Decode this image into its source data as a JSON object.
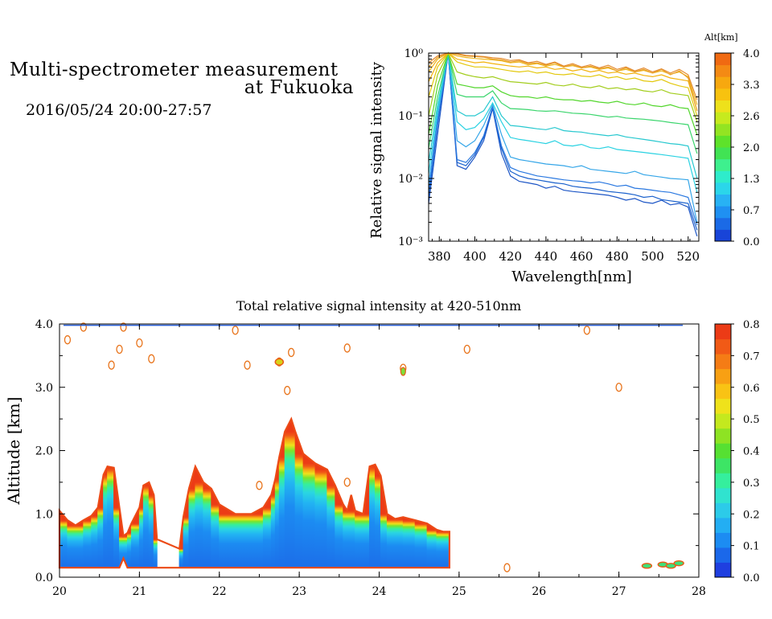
{
  "header": {
    "title_line1": "Multi-spectrometer measurement",
    "title_line2": "at Fukuoka",
    "date_range": "2016/05/24 20:00-27:57"
  },
  "chart_data": [
    {
      "type": "line",
      "xlabel": "Wavelength[nm]",
      "ylabel": "Relative signal intensity",
      "xlim": [
        374,
        526
      ],
      "ylim": [
        0.001,
        1
      ],
      "yscale": "log",
      "x_ticks": [
        380,
        400,
        420,
        440,
        460,
        480,
        500,
        520
      ],
      "y_ticks": [
        "10⁰",
        "10⁻¹",
        "10⁻²",
        "10⁻³"
      ],
      "x": [
        374,
        379,
        385,
        390,
        395,
        400,
        405,
        410,
        415,
        420,
        425,
        430,
        435,
        440,
        445,
        450,
        455,
        460,
        465,
        470,
        475,
        480,
        485,
        490,
        495,
        500,
        505,
        510,
        515,
        520,
        525
      ],
      "colorbar": {
        "label": "Alt[km]",
        "ticks": [
          "4.0",
          "3.3",
          "2.6",
          "2.0",
          "1.3",
          "0.7",
          "0.0"
        ],
        "colors": [
          "#1844d8",
          "#1b6ae6",
          "#1f90f2",
          "#28b2f4",
          "#2bd6ea",
          "#2eeccb",
          "#3ef08e",
          "#41e354",
          "#5ee22a",
          "#93e422",
          "#c6ea1e",
          "#eee11b",
          "#f8c20f",
          "#f7a80f",
          "#f48a14",
          "#f06a12"
        ]
      },
      "series": [
        {
          "color": "#1d56c6",
          "y": [
            0.004,
            0.05,
            1.0,
            0.016,
            0.014,
            0.022,
            0.04,
            0.13,
            0.025,
            0.011,
            0.009,
            0.0085,
            0.008,
            0.007,
            0.0075,
            0.0065,
            0.0062,
            0.006,
            0.0058,
            0.0056,
            0.0054,
            0.005,
            0.0045,
            0.0048,
            0.0042,
            0.004,
            0.0045,
            0.0038,
            0.004,
            0.0035,
            0.0012
          ]
        },
        {
          "color": "#1960cc",
          "y": [
            0.005,
            0.07,
            1.0,
            0.018,
            0.016,
            0.024,
            0.045,
            0.14,
            0.03,
            0.013,
            0.011,
            0.01,
            0.0095,
            0.009,
            0.0085,
            0.0082,
            0.0075,
            0.0072,
            0.007,
            0.0066,
            0.0062,
            0.006,
            0.0058,
            0.0055,
            0.005,
            0.0052,
            0.0046,
            0.0044,
            0.0042,
            0.004,
            0.0015
          ]
        },
        {
          "color": "#2a78e0",
          "y": [
            0.006,
            0.08,
            1.0,
            0.02,
            0.018,
            0.026,
            0.048,
            0.14,
            0.033,
            0.015,
            0.013,
            0.012,
            0.011,
            0.0105,
            0.01,
            0.0095,
            0.0092,
            0.009,
            0.0085,
            0.0088,
            0.0082,
            0.0075,
            0.0078,
            0.007,
            0.0068,
            0.0065,
            0.0062,
            0.006,
            0.0055,
            0.005,
            0.0018
          ]
        },
        {
          "color": "#35a6e8",
          "y": [
            0.008,
            0.1,
            1.0,
            0.04,
            0.032,
            0.04,
            0.07,
            0.15,
            0.05,
            0.022,
            0.02,
            0.019,
            0.018,
            0.017,
            0.0165,
            0.016,
            0.015,
            0.016,
            0.014,
            0.0135,
            0.013,
            0.0125,
            0.012,
            0.013,
            0.0115,
            0.011,
            0.0105,
            0.01,
            0.0098,
            0.0095,
            0.002
          ]
        },
        {
          "color": "#2ad2e2",
          "y": [
            0.012,
            0.12,
            1.0,
            0.08,
            0.06,
            0.065,
            0.09,
            0.16,
            0.08,
            0.045,
            0.042,
            0.04,
            0.038,
            0.036,
            0.04,
            0.034,
            0.033,
            0.035,
            0.031,
            0.03,
            0.032,
            0.029,
            0.028,
            0.027,
            0.026,
            0.025,
            0.024,
            0.023,
            0.022,
            0.021,
            0.006
          ]
        },
        {
          "color": "#27c8cf",
          "y": [
            0.018,
            0.15,
            1.0,
            0.12,
            0.1,
            0.1,
            0.12,
            0.2,
            0.1,
            0.07,
            0.068,
            0.065,
            0.062,
            0.06,
            0.065,
            0.058,
            0.056,
            0.055,
            0.052,
            0.05,
            0.048,
            0.05,
            0.046,
            0.044,
            0.042,
            0.04,
            0.038,
            0.036,
            0.035,
            0.033,
            0.01
          ]
        },
        {
          "color": "#3ad56c",
          "y": [
            0.03,
            0.2,
            1.0,
            0.22,
            0.2,
            0.2,
            0.2,
            0.25,
            0.16,
            0.13,
            0.128,
            0.125,
            0.12,
            0.118,
            0.12,
            0.115,
            0.11,
            0.108,
            0.105,
            0.1,
            0.095,
            0.098,
            0.092,
            0.09,
            0.088,
            0.085,
            0.082,
            0.078,
            0.075,
            0.072,
            0.025
          ]
        },
        {
          "color": "#52d62c",
          "y": [
            0.05,
            0.3,
            1.0,
            0.32,
            0.3,
            0.28,
            0.28,
            0.3,
            0.24,
            0.21,
            0.2,
            0.2,
            0.19,
            0.2,
            0.185,
            0.18,
            0.18,
            0.17,
            0.175,
            0.165,
            0.16,
            0.17,
            0.155,
            0.15,
            0.16,
            0.145,
            0.14,
            0.15,
            0.135,
            0.13,
            0.05
          ]
        },
        {
          "color": "#a2cd1c",
          "y": [
            0.1,
            0.45,
            1.0,
            0.5,
            0.45,
            0.42,
            0.4,
            0.42,
            0.38,
            0.35,
            0.34,
            0.33,
            0.32,
            0.34,
            0.31,
            0.3,
            0.32,
            0.29,
            0.28,
            0.3,
            0.27,
            0.28,
            0.26,
            0.27,
            0.25,
            0.24,
            0.26,
            0.23,
            0.22,
            0.21,
            0.08
          ]
        },
        {
          "color": "#e3c80c",
          "y": [
            0.2,
            0.6,
            1.0,
            0.72,
            0.65,
            0.6,
            0.6,
            0.58,
            0.55,
            0.52,
            0.5,
            0.52,
            0.48,
            0.5,
            0.46,
            0.45,
            0.47,
            0.43,
            0.42,
            0.45,
            0.4,
            0.42,
            0.38,
            0.4,
            0.36,
            0.35,
            0.38,
            0.33,
            0.3,
            0.28,
            0.1
          ]
        },
        {
          "color": "#f2b20d",
          "y": [
            0.35,
            0.7,
            1.0,
            0.8,
            0.75,
            0.7,
            0.72,
            0.68,
            0.65,
            0.62,
            0.6,
            0.62,
            0.58,
            0.6,
            0.55,
            0.57,
            0.52,
            0.55,
            0.5,
            0.53,
            0.48,
            0.5,
            0.46,
            0.48,
            0.44,
            0.42,
            0.45,
            0.4,
            0.38,
            0.36,
            0.12
          ]
        },
        {
          "color": "#eeb51c",
          "y": [
            0.5,
            0.8,
            1.0,
            0.9,
            0.85,
            0.82,
            0.8,
            0.78,
            0.75,
            0.7,
            0.72,
            0.65,
            0.68,
            0.62,
            0.66,
            0.6,
            0.63,
            0.58,
            0.6,
            0.55,
            0.58,
            0.52,
            0.55,
            0.5,
            0.53,
            0.48,
            0.52,
            0.46,
            0.5,
            0.42,
            0.15
          ]
        },
        {
          "color": "#e9a02a",
          "y": [
            0.6,
            0.85,
            1.0,
            0.95,
            0.9,
            0.88,
            0.86,
            0.8,
            0.78,
            0.72,
            0.75,
            0.68,
            0.7,
            0.64,
            0.7,
            0.6,
            0.65,
            0.58,
            0.62,
            0.56,
            0.6,
            0.52,
            0.58,
            0.5,
            0.55,
            0.48,
            0.55,
            0.45,
            0.52,
            0.4,
            0.12
          ]
        },
        {
          "color": "#e48a2e",
          "y": [
            0.7,
            0.9,
            1.0,
            0.98,
            0.92,
            0.9,
            0.88,
            0.84,
            0.82,
            0.76,
            0.78,
            0.7,
            0.74,
            0.66,
            0.72,
            0.62,
            0.68,
            0.6,
            0.65,
            0.58,
            0.64,
            0.55,
            0.6,
            0.52,
            0.58,
            0.5,
            0.56,
            0.48,
            0.55,
            0.45,
            0.18
          ]
        }
      ]
    },
    {
      "type": "heatmap",
      "title": "Total relative signal intensity at 420-510nm",
      "ylabel": "Altitude [km]",
      "xlim": [
        20,
        28
      ],
      "ylim": [
        0,
        4
      ],
      "x_ticks": [
        "20",
        "21",
        "22",
        "23",
        "24",
        "25",
        "26",
        "27",
        "28"
      ],
      "y_ticks": [
        "0.0",
        "1.0",
        "2.0",
        "3.0",
        "4.0"
      ],
      "colorbar": {
        "ticks": [
          "0.8",
          "0.7",
          "0.6",
          "0.5",
          "0.4",
          "0.3",
          "0.2",
          "0.1",
          "0.0"
        ],
        "colors": [
          "#1f3fe0",
          "#1b68ea",
          "#1c8cf2",
          "#23aef3",
          "#2ccbe9",
          "#30e3cf",
          "#35ef9d",
          "#3de565",
          "#56e032",
          "#8ee323",
          "#c4e91e",
          "#efe21b",
          "#f9c314",
          "#f8a013",
          "#f57c15",
          "#f15a16",
          "#ec3b16"
        ]
      },
      "bottom_profile": [
        [
          20.0,
          0.15,
          1.05
        ],
        [
          20.1,
          0.15,
          0.9
        ],
        [
          20.2,
          0.15,
          0.82
        ],
        [
          20.3,
          0.15,
          0.9
        ],
        [
          20.4,
          0.15,
          0.97
        ],
        [
          20.48,
          0.15,
          1.1
        ],
        [
          20.55,
          0.15,
          1.62
        ],
        [
          20.6,
          0.15,
          1.75
        ],
        [
          20.68,
          0.15,
          1.73
        ],
        [
          20.75,
          0.15,
          1.1
        ],
        [
          20.8,
          0.3,
          0.65
        ],
        [
          20.85,
          0.15,
          0.7
        ],
        [
          20.9,
          0.15,
          0.85
        ],
        [
          21.0,
          0.15,
          1.1
        ],
        [
          21.05,
          0.15,
          1.45
        ],
        [
          21.12,
          0.15,
          1.5
        ],
        [
          21.18,
          0.15,
          1.3
        ],
        [
          21.22,
          0.15,
          0.6
        ],
        [
          21.5,
          0.15,
          0.45
        ],
        [
          21.55,
          0.15,
          0.95
        ],
        [
          21.62,
          0.15,
          1.4
        ],
        [
          21.7,
          0.15,
          1.75
        ],
        [
          21.8,
          0.15,
          1.5
        ],
        [
          21.9,
          0.15,
          1.4
        ],
        [
          22.0,
          0.15,
          1.15
        ],
        [
          22.2,
          0.15,
          1.0
        ],
        [
          22.4,
          0.15,
          1.0
        ],
        [
          22.55,
          0.15,
          1.1
        ],
        [
          22.65,
          0.15,
          1.3
        ],
        [
          22.7,
          0.15,
          1.55
        ],
        [
          22.75,
          0.15,
          1.9
        ],
        [
          22.82,
          0.15,
          2.3
        ],
        [
          22.9,
          0.15,
          2.5
        ],
        [
          22.95,
          0.15,
          2.3
        ],
        [
          23.05,
          0.15,
          1.95
        ],
        [
          23.2,
          0.15,
          1.8
        ],
        [
          23.35,
          0.15,
          1.7
        ],
        [
          23.45,
          0.15,
          1.45
        ],
        [
          23.55,
          0.15,
          1.15
        ],
        [
          23.6,
          0.15,
          1.05
        ],
        [
          23.65,
          0.15,
          1.3
        ],
        [
          23.7,
          0.15,
          1.05
        ],
        [
          23.8,
          0.15,
          1.0
        ],
        [
          23.88,
          0.15,
          1.75
        ],
        [
          23.95,
          0.15,
          1.78
        ],
        [
          24.02,
          0.15,
          1.6
        ],
        [
          24.1,
          0.15,
          1.0
        ],
        [
          24.2,
          0.15,
          0.92
        ],
        [
          24.3,
          0.15,
          0.95
        ],
        [
          24.45,
          0.15,
          0.9
        ],
        [
          24.6,
          0.15,
          0.85
        ],
        [
          24.72,
          0.15,
          0.75
        ],
        [
          24.8,
          0.15,
          0.72
        ],
        [
          24.88,
          0.15,
          0.72
        ]
      ],
      "orange_blobs": [
        [
          20.1,
          3.75
        ],
        [
          20.3,
          3.95
        ],
        [
          20.75,
          3.6
        ],
        [
          21.0,
          3.7
        ],
        [
          20.8,
          3.95
        ],
        [
          22.2,
          3.9
        ],
        [
          22.9,
          3.55
        ],
        [
          22.75,
          3.4
        ],
        [
          22.85,
          2.95
        ],
        [
          23.6,
          3.62
        ],
        [
          24.3,
          3.3
        ],
        [
          25.1,
          3.6
        ],
        [
          26.6,
          3.9
        ],
        [
          27.0,
          3.0
        ],
        [
          22.5,
          1.45
        ],
        [
          23.6,
          1.5
        ],
        [
          22.35,
          3.35
        ],
        [
          21.15,
          3.45
        ],
        [
          20.65,
          3.35
        ],
        [
          25.6,
          0.15
        ]
      ],
      "bottom_right_blobs": [
        [
          27.35,
          0.18
        ],
        [
          27.55,
          0.2
        ],
        [
          27.65,
          0.18
        ],
        [
          27.75,
          0.22
        ]
      ]
    }
  ]
}
